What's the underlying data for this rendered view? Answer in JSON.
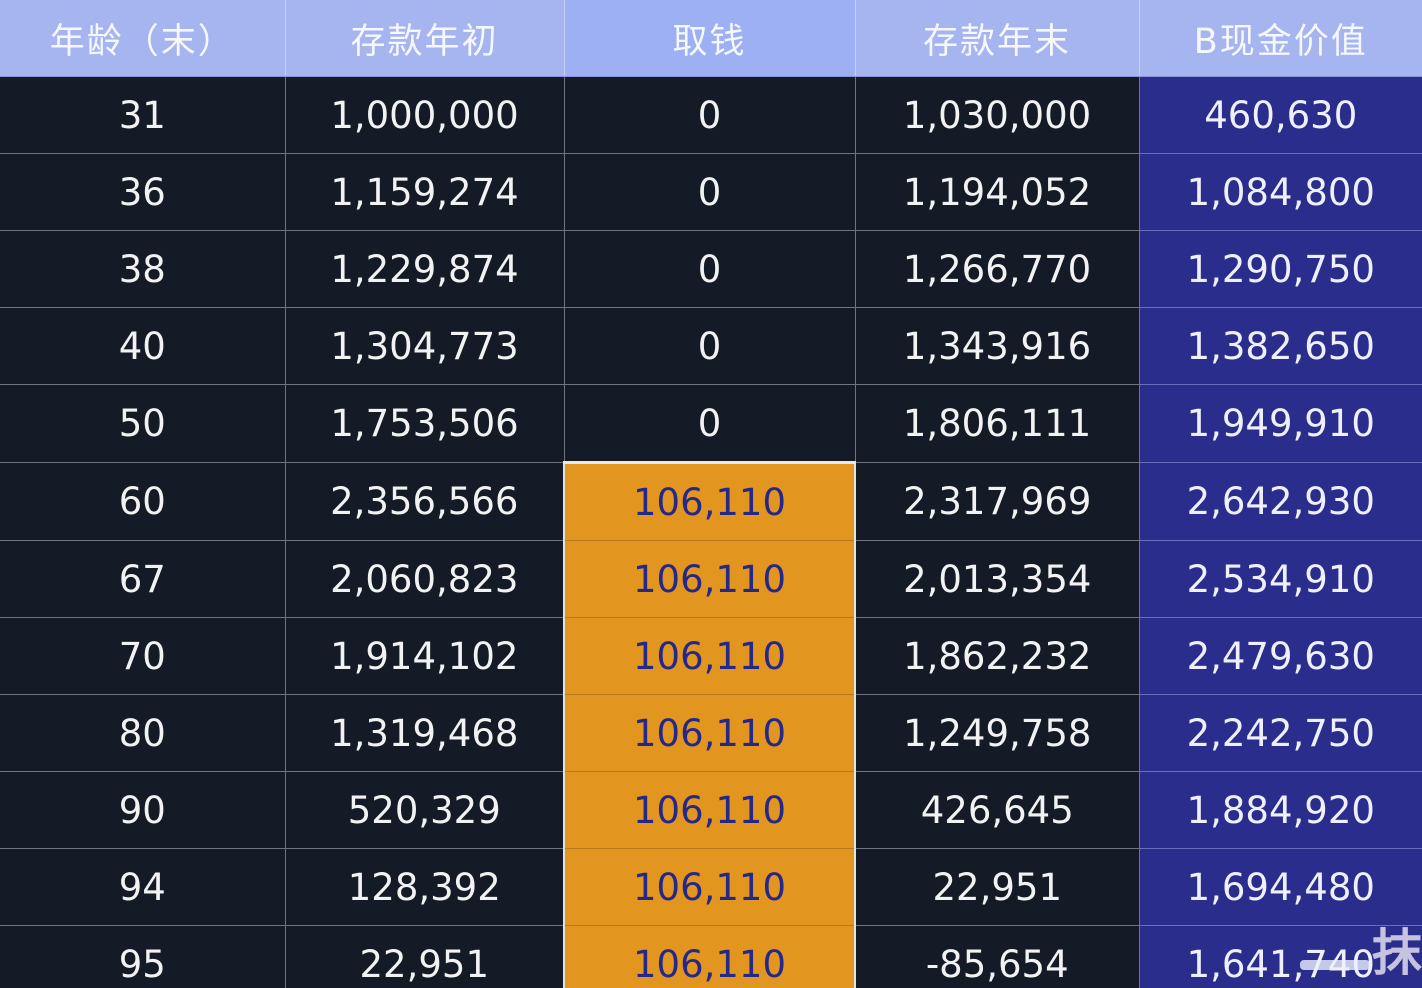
{
  "table": {
    "headers": [
      "年龄（末）",
      "存款年初",
      "取钱",
      "存款年末",
      "B现金价值"
    ],
    "rows": [
      [
        "31",
        "1,000,000",
        "0",
        "1,030,000",
        "460,630"
      ],
      [
        "36",
        "1,159,274",
        "0",
        "1,194,052",
        "1,084,800"
      ],
      [
        "38",
        "1,229,874",
        "0",
        "1,266,770",
        "1,290,750"
      ],
      [
        "40",
        "1,304,773",
        "0",
        "1,343,916",
        "1,382,650"
      ],
      [
        "50",
        "1,753,506",
        "0",
        "1,806,111",
        "1,949,910"
      ],
      [
        "60",
        "2,356,566",
        "106,110",
        "2,317,969",
        "2,642,930"
      ],
      [
        "67",
        "2,060,823",
        "106,110",
        "2,013,354",
        "2,534,910"
      ],
      [
        "70",
        "1,914,102",
        "106,110",
        "1,862,232",
        "2,479,630"
      ],
      [
        "80",
        "1,319,468",
        "106,110",
        "1,249,758",
        "2,242,750"
      ],
      [
        "90",
        "520,329",
        "106,110",
        "426,645",
        "1,884,920"
      ],
      [
        "94",
        "128,392",
        "106,110",
        "22,951",
        "1,694,480"
      ],
      [
        "95",
        "22,951",
        "106,110",
        "-85,654",
        "1,641,740"
      ]
    ],
    "withdrawal_rows": [
      5,
      6,
      7,
      8,
      9,
      10,
      11
    ]
  },
  "colors": {
    "header_bg": "#a6b4f0",
    "body_bg": "#141a26",
    "cash_value_bg": "#2b2d8c",
    "withdrawal_highlight": "#e2961f",
    "withdrawal_text": "#24288a"
  },
  "watermark": {
    "text": "抹"
  }
}
